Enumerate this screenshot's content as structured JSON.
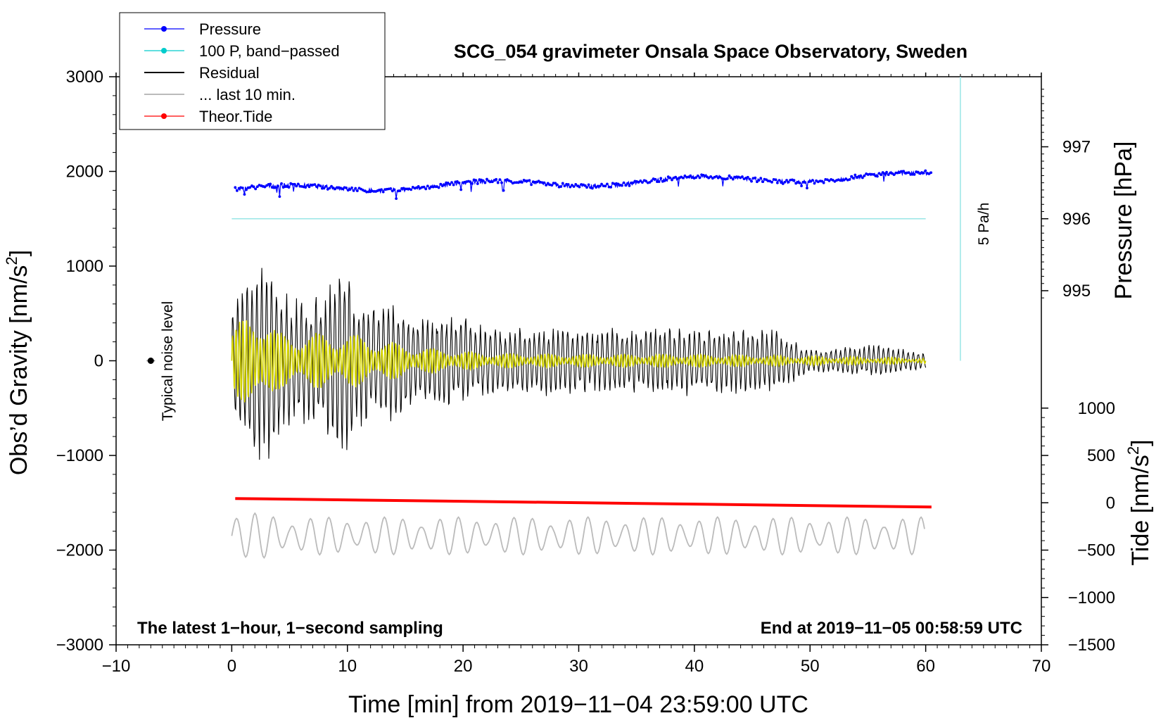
{
  "chart_data": {
    "type": "line",
    "title": "SCG_054 gravimeter Onsala Space Observatory, Sweden",
    "xlabel": "Time [min] from 2019−11−04 23:59:00 UTC",
    "ylabel_left": "Obs’d Gravity [nm/s",
    "ylabel_left_sup": "2",
    "ylabel_left_end": "]",
    "ylabel_right_pressure": "Pressure [hPa]",
    "ylabel_right_tide": "Tide [nm/s",
    "ylabel_right_tide_sup": "2",
    "ylabel_right_tide_end": "]",
    "xlim": [
      -10,
      70
    ],
    "ylim": [
      -3000,
      3000
    ],
    "x_ticks": [
      "−10",
      "0",
      "10",
      "20",
      "30",
      "40",
      "50",
      "60",
      "70"
    ],
    "x_tick_values": [
      -10,
      0,
      10,
      20,
      30,
      40,
      50,
      60,
      70
    ],
    "y_ticks": [
      "3000",
      "2000",
      "1000",
      "0",
      "−1000",
      "−2000",
      "−3000"
    ],
    "y_tick_values": [
      3000,
      2000,
      1000,
      0,
      -1000,
      -2000,
      -3000
    ],
    "pressure_ticks": [
      "997",
      "996",
      "995"
    ],
    "pressure_tick_values": [
      997,
      996,
      995
    ],
    "pressure_axis_map": {
      "p_ref": 996,
      "g_ref": 1500,
      "g_per_hPa": 760
    },
    "tide_ticks": [
      "1000",
      "500",
      "0",
      "−500",
      "−1000",
      "−1500"
    ],
    "tide_tick_values": [
      1000,
      500,
      0,
      -500,
      -1000,
      -1500
    ],
    "tide_axis_map": {
      "t_ref": 0,
      "g_ref": -1500,
      "g_per_unit": 1.0
    },
    "legend": [
      {
        "label": "Pressure",
        "color": "#0000ff",
        "marker": true
      },
      {
        "label": "100 P, band−passed",
        "color": "#00cccc",
        "marker": true
      },
      {
        "label": "Residual",
        "color": "#000000",
        "marker": false
      },
      {
        "label": "... last 10 min.",
        "color": "#bbbbbb",
        "marker": false
      },
      {
        "label": "Theor.Tide",
        "color": "#ff0000",
        "marker": true
      }
    ],
    "annotations": {
      "noise_label": "Typical noise level",
      "noise_point": {
        "x": -7,
        "y": 0
      },
      "rate_label": "5 Pa/h",
      "footer_left": "The latest 1−hour, 1−second sampling",
      "footer_right": "End at 2019−11−05 00:58:59 UTC"
    },
    "series": [
      {
        "name": "Pressure",
        "color": "#0000ff",
        "units": "hPa",
        "x_range": [
          0.3,
          60.5
        ],
        "start": 996.4,
        "end": 996.6,
        "noise": 0.03
      },
      {
        "name": "100 P, band−passed",
        "color": "#99e6e6",
        "units": "nm/s2 (offset)",
        "x_range": [
          0,
          60
        ],
        "value": 1500
      },
      {
        "name": "Residual",
        "color": "#000000",
        "x_range": [
          0,
          60
        ],
        "envelope": [
          [
            0,
            650
          ],
          [
            2,
            1150
          ],
          [
            3,
            1200
          ],
          [
            5,
            700
          ],
          [
            8,
            700
          ],
          [
            9.5,
            1200
          ],
          [
            11,
            700
          ],
          [
            14,
            650
          ],
          [
            16,
            500
          ],
          [
            20,
            500
          ],
          [
            23,
            350
          ],
          [
            26,
            400
          ],
          [
            30,
            350
          ],
          [
            40,
            380
          ],
          [
            47,
            350
          ],
          [
            50,
            120
          ],
          [
            56,
            180
          ],
          [
            60,
            80
          ]
        ]
      },
      {
        "name": "Band-passed residual",
        "color": "#d4d400",
        "x_range": [
          0,
          60
        ],
        "envelope": [
          [
            0,
            350
          ],
          [
            2.5,
            600
          ],
          [
            4,
            300
          ],
          [
            10,
            300
          ],
          [
            16,
            150
          ],
          [
            22,
            80
          ],
          [
            30,
            70
          ],
          [
            40,
            70
          ],
          [
            50,
            50
          ],
          [
            60,
            30
          ]
        ]
      },
      {
        "name": "... last 10 min.",
        "color": "#bbbbbb",
        "x_range": [
          0,
          60
        ],
        "offset": -1850,
        "amplitude": 200
      },
      {
        "name": "Theor.Tide",
        "color": "#ff0000",
        "units": "nm/s2",
        "x_range": [
          0.3,
          60.5
        ],
        "start": 45,
        "end": -45
      }
    ]
  }
}
